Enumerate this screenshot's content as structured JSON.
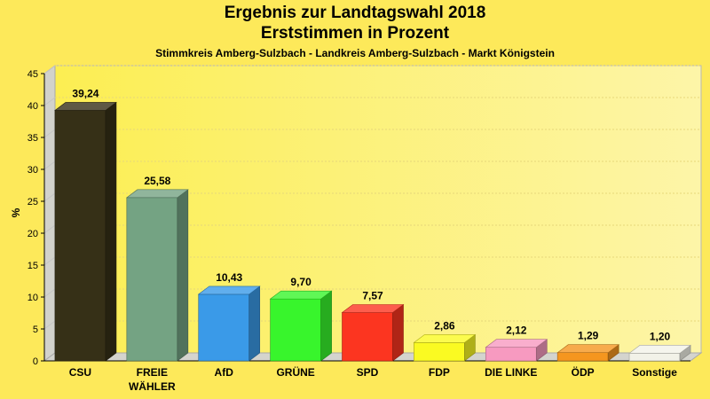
{
  "chart_data": {
    "type": "bar",
    "title": "Ergebnis zur Landtagswahl 2018",
    "title2": "Erststimmen in Prozent",
    "subtitle": "Stimmkreis Amberg-Sulzbach - Landkreis Amberg-Sulzbach - Markt Königstein",
    "ylabel": "%",
    "ylim": [
      0,
      45
    ],
    "yticks": [
      "0",
      "5",
      "10",
      "15",
      "20",
      "25",
      "30",
      "35",
      "40",
      "45"
    ],
    "grid": true,
    "categories": [
      {
        "label": "CSU",
        "label2": ""
      },
      {
        "label": "FREIE",
        "label2": "WÄHLER"
      },
      {
        "label": "AfD",
        "label2": ""
      },
      {
        "label": "GRÜNE",
        "label2": ""
      },
      {
        "label": "SPD",
        "label2": ""
      },
      {
        "label": "FDP",
        "label2": ""
      },
      {
        "label": "DIE LINKE",
        "label2": ""
      },
      {
        "label": "ÖDP",
        "label2": ""
      },
      {
        "label": "Sonstige",
        "label2": ""
      }
    ],
    "values": [
      39.24,
      25.58,
      10.43,
      9.7,
      7.57,
      2.86,
      2.12,
      1.29,
      1.2
    ],
    "value_labels": [
      "39,24",
      "25,58",
      "10,43",
      "9,70",
      "7,57",
      "2,86",
      "2,12",
      "1,29",
      "1,20"
    ],
    "colors": [
      "#363017",
      "#74a383",
      "#3a9ae8",
      "#38f52c",
      "#fc3520",
      "#fafa22",
      "#f79ac0",
      "#f5961f",
      "#f2f2e8"
    ]
  }
}
